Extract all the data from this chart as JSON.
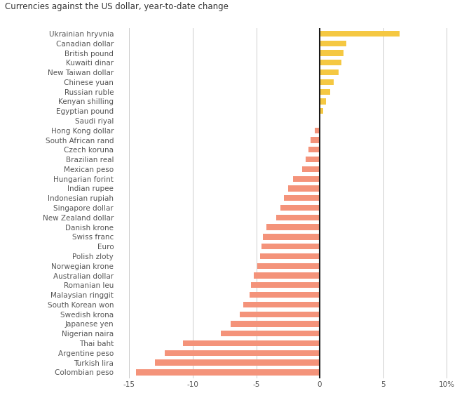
{
  "title": "Currencies against the US dollar, year-to-date change",
  "currencies": [
    "Ukrainian hryvnia",
    "Canadian dollar",
    "British pound",
    "Kuwaiti dinar",
    "New Taiwan dollar",
    "Chinese yuan",
    "Russian ruble",
    "Kenyan shilling",
    "Egyptian pound",
    "Saudi riyal",
    "Hong Kong dollar",
    "South African rand",
    "Czech koruna",
    "Brazilian real",
    "Mexican peso",
    "Hungarian forint",
    "Indian rupee",
    "Indonesian rupiah",
    "Singapore dollar",
    "New Zealand dollar",
    "Danish krone",
    "Swiss franc",
    "Euro",
    "Polish zloty",
    "Norwegian krone",
    "Australian dollar",
    "Romanian leu",
    "Malaysian ringgit",
    "South Korean won",
    "Swedish krona",
    "Japanese yen",
    "Nigerian naira",
    "Thai baht",
    "Argentine peso",
    "Turkish lira",
    "Colombian peso"
  ],
  "values": [
    6.3,
    2.1,
    1.9,
    1.7,
    1.5,
    1.1,
    0.8,
    0.5,
    0.3,
    0.05,
    -0.4,
    -0.7,
    -0.9,
    -1.1,
    -1.4,
    -2.1,
    -2.5,
    -2.8,
    -3.1,
    -3.4,
    -4.2,
    -4.5,
    -4.6,
    -4.7,
    -4.9,
    -5.2,
    -5.4,
    -5.5,
    -6.0,
    -6.3,
    -7.0,
    -7.8,
    -10.8,
    -12.2,
    -13.0,
    -14.5
  ],
  "positive_color": "#f5c842",
  "negative_color": "#f4937a",
  "background_color": "#ffffff",
  "grid_color": "#cccccc",
  "text_color": "#555555",
  "title_color": "#333333",
  "zero_line_color": "#1a1a1a",
  "xlim": [
    -16,
    11
  ],
  "xticks": [
    -15,
    -10,
    -5,
    0,
    5,
    10
  ],
  "xtick_labels": [
    "-15",
    "-10",
    "-5",
    "0",
    "5",
    "10%"
  ],
  "title_fontsize": 8.5,
  "tick_fontsize": 7.5,
  "label_fontsize": 7.5,
  "bar_height": 0.6
}
